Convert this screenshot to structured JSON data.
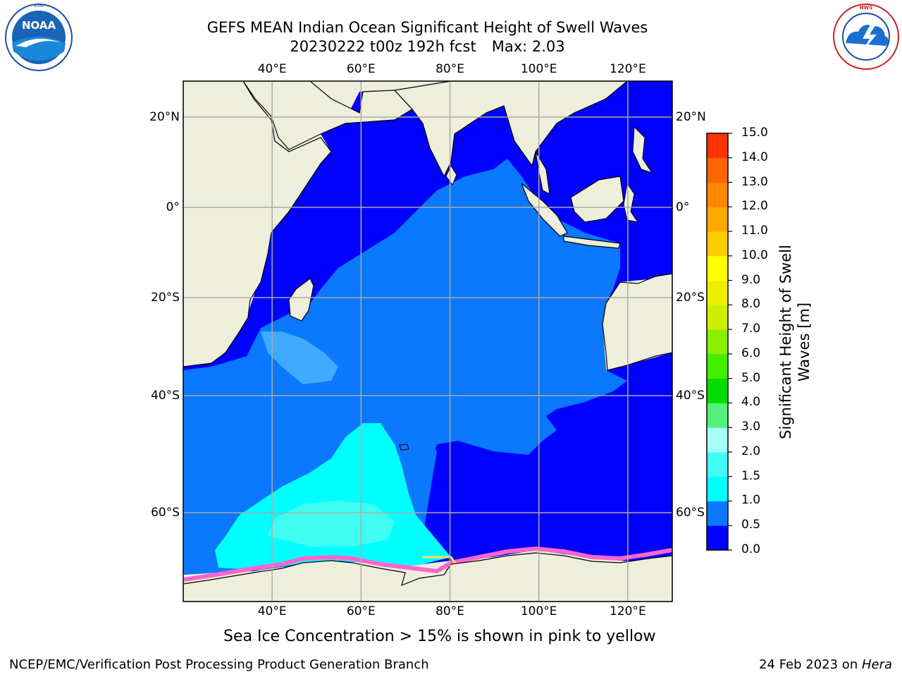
{
  "title": {
    "line1": "GEFS MEAN Indian Ocean Significant Height of Swell Waves",
    "run": "20230222 t00z 192h fcst",
    "max": "Max: 2.03"
  },
  "logos": {
    "left": {
      "text": "NOAA",
      "ring_text": "NATIONAL OCEANIC AND ATMOSPHERIC ADMINISTRATION · U.S. DEPARTMENT OF COMMERCE"
    },
    "right": {
      "ring_text": "NATIONAL WEATHER SERVICE"
    }
  },
  "map": {
    "lon_labels": [
      "40°E",
      "60°E",
      "80°E",
      "100°E",
      "120°E"
    ],
    "lat_labels_left": [
      "20°N",
      "0°",
      "20°S",
      "40°S",
      "60°S"
    ],
    "lat_labels_right": [
      "20°N",
      "0°",
      "20°S",
      "40°S",
      "60°S"
    ],
    "extent_lon": [
      20,
      130
    ],
    "extent_lat": [
      -70,
      28
    ],
    "colors": {
      "land": "#eeeedc",
      "ocean_0_05": "#0000ff",
      "ocean_05_1": "#0a78ff",
      "ocean_1_15": "#00ffff",
      "ocean_15_2": "#40fff2",
      "ice": "#ff66cc",
      "grid": "#aaaaaa"
    }
  },
  "colorbar": {
    "title_line1": "Significant Height of Swell",
    "title_line2": "Waves [m]",
    "ticks": [
      "15.0",
      "14.0",
      "13.0",
      "12.0",
      "11.0",
      "10.0",
      "9.0",
      "8.0",
      "7.0",
      "6.0",
      "5.0",
      "4.0",
      "3.0",
      "2.0",
      "1.5",
      "1.0",
      "0.5",
      "0.0"
    ],
    "bins": [
      "#0000ff",
      "#0a78ff",
      "#00ffff",
      "#40fff2",
      "#a6fff6",
      "#55f07a",
      "#00dd00",
      "#44ee00",
      "#88f000",
      "#ccf000",
      "#eeee00",
      "#ffff00",
      "#ffcc00",
      "#ffaa00",
      "#ff8800",
      "#ff6600",
      "#ff3300"
    ]
  },
  "caption": "Sea Ice Concentration > 15% is shown in pink to yellow",
  "footer": {
    "left": "NCEP/EMC/Verification Post Processing Product Generation Branch",
    "right_date": "24 Feb 2023 on ",
    "right_host": "Hera"
  }
}
